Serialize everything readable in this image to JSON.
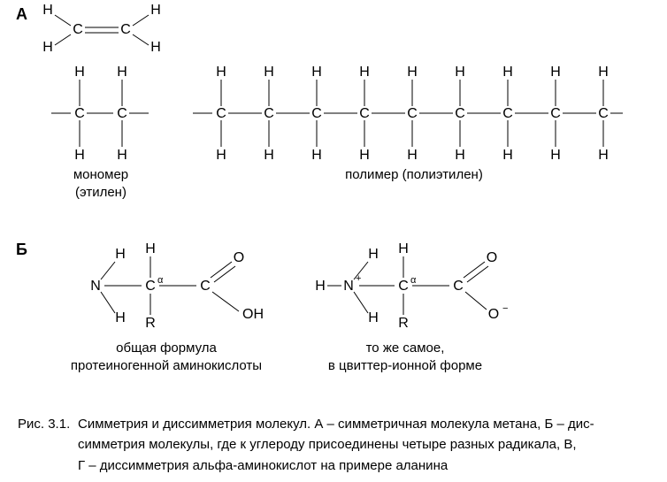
{
  "panelA": {
    "label": "А",
    "ethylene_caption_line1": "мономер",
    "ethylene_caption_line2": "(этилен)",
    "polymer_caption": "полимер (полиэтилен)",
    "atoms": {
      "C": "C",
      "H": "H"
    },
    "stroke": "#000000",
    "stroke_width": 1,
    "double_bond_gap": 3,
    "monomer": {
      "unit_spacing": 46,
      "bond_v": 22,
      "bond_h": 20
    },
    "polymer": {
      "units": 9,
      "unit_spacing": 54,
      "bond_v": 22,
      "bond_h": 20
    }
  },
  "panelB": {
    "label": "Б",
    "caption_left_line1": "общая формула",
    "caption_left_line2": "протеиногенной аминокислоты",
    "caption_right_line1": "то же самое,",
    "caption_right_line2": "в цвиттер-ионной форме",
    "atoms": {
      "N": "N",
      "Nplus": "N",
      "plus": "+",
      "C": "C",
      "Calpha": "C",
      "alpha": "α",
      "H": "H",
      "R": "R",
      "O": "O",
      "OH": "OH",
      "Ominus": "O",
      "minus": "−"
    },
    "stroke": "#000000",
    "stroke_width": 1,
    "double_bond_gap": 3
  },
  "figure_caption": {
    "lead": "Рис. 3.1.",
    "line1": "Симметрия и диссимметрия молекул. А – симметричная молекула метана, Б – дис-",
    "line2": "симметрия молекулы, где к углероду присоединены четыре разных радикала, В,",
    "line3": "Г – диссимметрия альфа-аминокислот на примере аланина"
  },
  "colors": {
    "bg": "#ffffff",
    "text": "#000000"
  }
}
